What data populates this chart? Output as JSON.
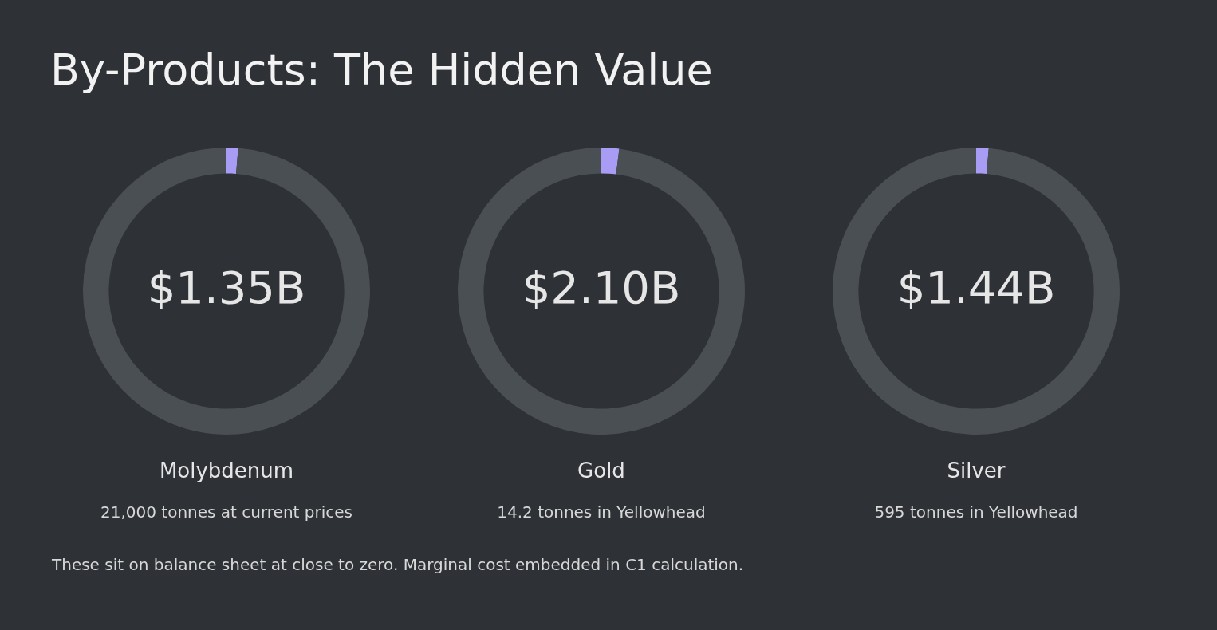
{
  "chart_data": [
    {
      "type": "other",
      "title": "By-Products: The Hidden Value",
      "annotations": [
        "These sit on balance sheet at close to zero. Marginal cost embedded in C1 calculation."
      ]
    },
    {
      "type": "donut",
      "title": "Molybdenum",
      "subtitle": "21,000 tonnes at current prices",
      "annotations": [
        "$1.35B"
      ],
      "categories": [
        null,
        null
      ],
      "values": [
        1.3,
        98.7
      ],
      "colors": [
        "#a99cf5",
        "#4a4f54"
      ]
    },
    {
      "type": "donut",
      "title": "Gold",
      "subtitle": "14.2 tonnes in Yellowhead",
      "annotations": [
        "$2.10B"
      ],
      "categories": [
        null,
        null
      ],
      "values": [
        2.0,
        98.0
      ],
      "colors": [
        "#a99cf5",
        "#4a4f54"
      ]
    },
    {
      "type": "donut",
      "title": "Silver",
      "subtitle": "595 tonnes in Yellowhead",
      "annotations": [
        "$1.44B"
      ],
      "categories": [
        null,
        null
      ],
      "values": [
        1.4,
        98.6
      ],
      "colors": [
        "#a99cf5",
        "#4a4f54"
      ]
    }
  ]
}
